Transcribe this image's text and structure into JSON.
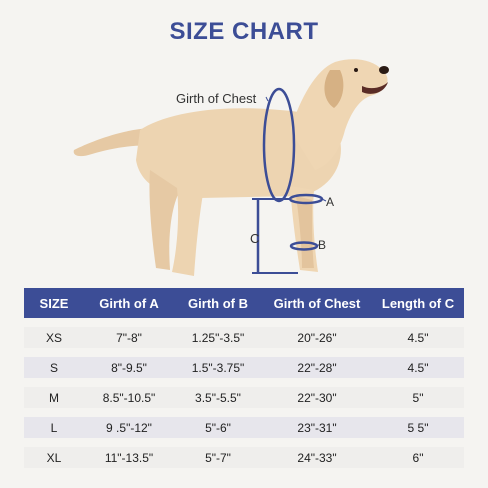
{
  "title": "SIZE CHART",
  "accent": "#3c4d96",
  "labels": {
    "chest": "Girth of Chest",
    "a": "A",
    "b": "B",
    "c": "C"
  },
  "table": {
    "headers": [
      "SIZE",
      "Girth of A",
      "Girth of B",
      "Girth of Chest",
      "Length of C"
    ],
    "rows": [
      [
        "XS",
        "7\"-8\"",
        "1.25\"-3.5\"",
        "20\"-26\"",
        "4.5\""
      ],
      [
        "S",
        "8\"-9.5\"",
        "1.5\"-3.75\"",
        "22\"-28\"",
        "4.5\""
      ],
      [
        "M",
        "8.5\"-10.5\"",
        "3.5\"-5.5\"",
        "22\"-30\"",
        "5\""
      ],
      [
        "L",
        "9 .5\"-12\"",
        "5\"-6\"",
        "23\"-31\"",
        "5 5\""
      ],
      [
        "XL",
        "11\"-13.5\"",
        "5\"-7\"",
        "24\"-33\"",
        "6\""
      ]
    ]
  }
}
